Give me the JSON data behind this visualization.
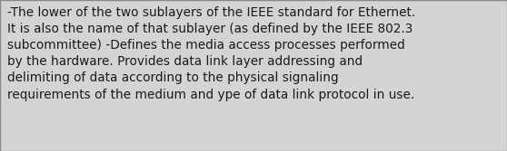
{
  "text": "-The lower of the two sublayers of the IEEE standard for Ethernet.\nIt is also the name of that sublayer (as defined by the IEEE 802.3\nsubcommittee) -Defines the media access processes performed\nby the hardware. Provides data link layer addressing and\ndelimiting of data according to the physical signaling\nrequirements of the medium and ype of data link protocol in use.",
  "background_color": "#d4d4d4",
  "border_color": "#888888",
  "text_color": "#1a1a1a",
  "font_size": 9.8,
  "font_family": "DejaVu Sans",
  "fig_width": 5.58,
  "fig_height": 1.67,
  "dpi": 100
}
